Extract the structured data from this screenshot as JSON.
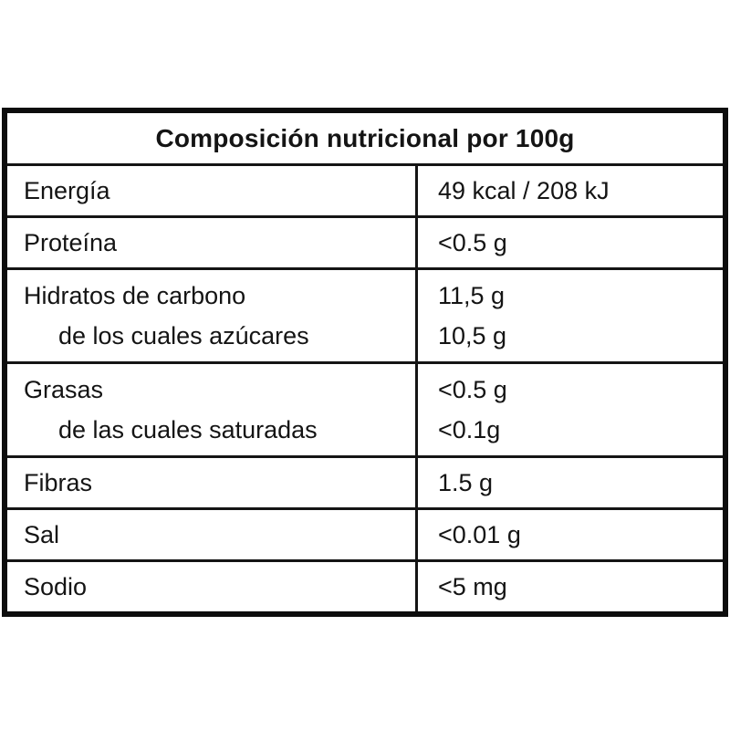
{
  "table": {
    "title": "Composición nutricional por 100g",
    "rows": [
      {
        "label": "Energía",
        "value": "49 kcal / 208 kJ"
      },
      {
        "label": "Proteína",
        "value": "<0.5 g"
      },
      {
        "label": "Hidratos de carbono",
        "sublabel": "de los cuales azúcares",
        "value": "11,5 g",
        "subvalue": "10,5 g"
      },
      {
        "label": "Grasas",
        "sublabel": "de las cuales saturadas",
        "value": "<0.5 g",
        "subvalue": "<0.1g"
      },
      {
        "label": "Fibras",
        "value": "1.5 g"
      },
      {
        "label": "Sal",
        "value": "<0.01 g"
      },
      {
        "label": "Sodio",
        "value": "<5 mg"
      }
    ],
    "colors": {
      "border": "#0d0d0d",
      "text": "#141414",
      "background": "#ffffff"
    }
  }
}
